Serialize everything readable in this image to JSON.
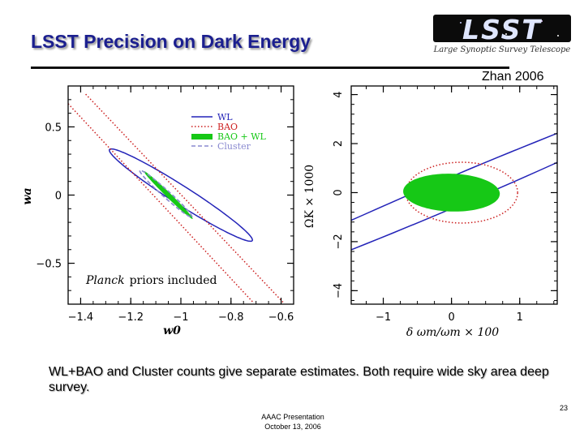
{
  "slide": {
    "title": "LSST Precision on Dark Energy",
    "citation": "Zhan 2006",
    "caption": "WL+BAO and Cluster counts give separate estimates.  Both require wide sky area deep survey.",
    "page_number": "23",
    "footer_line1": "AAAC Presentation",
    "footer_line2": "October 13, 2006",
    "logo_text": "LSST",
    "logo_subtitle": "Large Synoptic Survey Telescope"
  },
  "colors": {
    "title": "#1b1f8f",
    "wl": "#2323b8",
    "bao": "#cc1f1f",
    "bao_wl": "#16c816",
    "cluster": "#8a8ad0"
  },
  "chart_data": [
    {
      "type": "scatter",
      "title": "",
      "xlabel": "w0",
      "ylabel": "wa",
      "xlim": [
        -1.45,
        -0.55
      ],
      "ylim": [
        -0.8,
        0.8
      ],
      "xticks": [
        -1.4,
        -1.2,
        -1,
        -0.8,
        -0.6
      ],
      "xtick_labels": [
        "−1.4",
        "−1.2",
        "−1",
        "−0.8",
        "−0.6"
      ],
      "yticks": [
        0.5,
        0,
        -0.5
      ],
      "ytick_labels": [
        "0.5",
        "0",
        "−0.5"
      ],
      "annotation_italic": "Planck",
      "annotation_rest": "priors included",
      "legend_position": "top-right",
      "series": [
        {
          "name": "WL",
          "style": "solid-line",
          "color": "#2323b8",
          "ellipse": {
            "cx": -1.0,
            "cy": 0.0,
            "a": 0.44,
            "b": 0.052,
            "angle_deg": -50
          }
        },
        {
          "name": "BAO",
          "style": "dotted-line",
          "color": "#cc1f1f",
          "lines": [
            {
              "x1": -1.38,
              "y1": 0.74,
              "x2": -0.59,
              "y2": -0.79
            },
            {
              "x1": -1.45,
              "y1": 0.67,
              "x2": -0.71,
              "y2": -0.79
            }
          ]
        },
        {
          "name": "BAO + WL",
          "style": "filled",
          "color": "#16c816",
          "ellipse": {
            "cx": -1.05,
            "cy": 0.0,
            "a": 0.2,
            "b": 0.012,
            "angle_deg": -61
          }
        },
        {
          "name": "Cluster",
          "style": "dashed-line",
          "color": "#8a8ad0",
          "ellipse": {
            "cx": -1.06,
            "cy": 0.01,
            "a": 0.2,
            "b": 0.018,
            "angle_deg": -59
          }
        }
      ]
    },
    {
      "type": "scatter",
      "title": "",
      "xlabel": "δ ωm/ωm × 100",
      "ylabel": "ΩK × 1000",
      "xlim": [
        -1.47,
        1.55
      ],
      "ylim": [
        -4.55,
        4.35
      ],
      "xticks": [
        -1,
        0,
        1
      ],
      "xtick_labels": [
        "−1",
        "0",
        "1"
      ],
      "yticks": [
        4,
        2,
        0,
        -2,
        -4
      ],
      "ytick_labels": [
        "4",
        "2",
        "0",
        "−2",
        "−4"
      ],
      "series": [
        {
          "name": "WL",
          "style": "solid-line",
          "color": "#2323b8",
          "ellipse": {
            "cx": 0.0,
            "cy": 0.0,
            "a": 5.9,
            "b": 0.42,
            "angle_deg": 50
          }
        },
        {
          "name": "BAO",
          "style": "dotted-line",
          "color": "#cc1f1f",
          "ellipse": {
            "cx": 0.15,
            "cy": 0.0,
            "a": 0.82,
            "b": 1.24,
            "angle_deg": 0
          }
        },
        {
          "name": "BAO + WL",
          "style": "filled",
          "color": "#16c816",
          "ellipse": {
            "cx": 0.0,
            "cy": 0.0,
            "a": 0.7,
            "b": 0.78,
            "angle_deg": 18
          }
        }
      ]
    }
  ]
}
